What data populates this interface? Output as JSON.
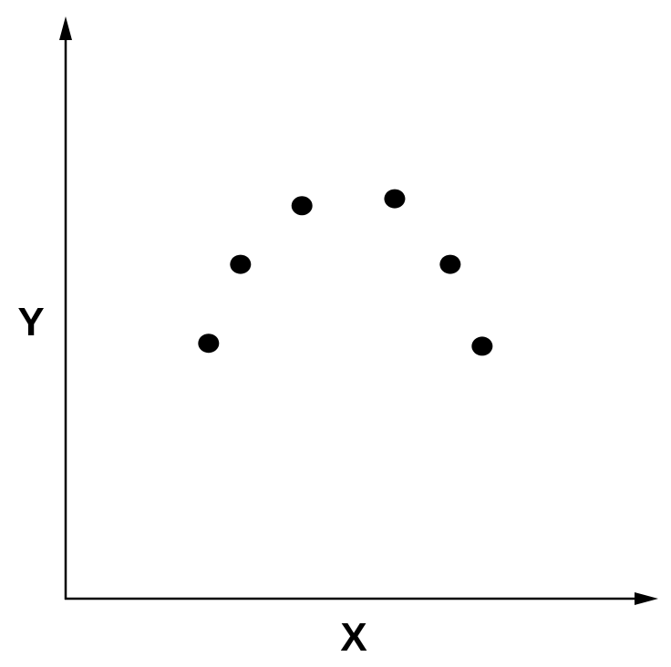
{
  "chart_data": {
    "type": "scatter",
    "title": "",
    "xlabel": "X",
    "ylabel": "Y",
    "xlim": [
      0,
      100
    ],
    "ylim": [
      0,
      100
    ],
    "grid": false,
    "ticks": false,
    "point_color": "#000000",
    "points": [
      {
        "x": 24.2,
        "y": 44.0
      },
      {
        "x": 29.6,
        "y": 57.6
      },
      {
        "x": 40.0,
        "y": 67.7
      },
      {
        "x": 55.7,
        "y": 68.9
      },
      {
        "x": 65.1,
        "y": 57.6
      },
      {
        "x": 70.5,
        "y": 43.5
      }
    ]
  }
}
